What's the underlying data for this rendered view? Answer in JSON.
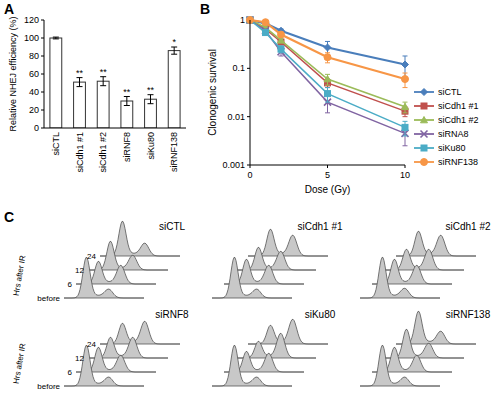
{
  "chart_data": [
    {
      "type": "bar",
      "panel_label": "A",
      "ylabel": "Relative NHEJ efficiency (%)",
      "categories": [
        "siCTL",
        "siCdh1 #1",
        "siCdh1 #2",
        "siRNF8",
        "siKu80",
        "siRNF138"
      ],
      "values": [
        100,
        51,
        52,
        30,
        32,
        86
      ],
      "errors": [
        1,
        5,
        5,
        5,
        5,
        4
      ],
      "significance": [
        null,
        "**",
        "**",
        "**",
        "**",
        "*"
      ],
      "color": "#ffffff",
      "ylim": [
        0,
        120
      ],
      "yticks": [
        0,
        20,
        40,
        60,
        80,
        100,
        120
      ],
      "grid": false
    },
    {
      "type": "line",
      "panel_label": "B",
      "xlabel": "Dose (Gy)",
      "ylabel": "Clonogenic survival",
      "x": [
        0,
        1,
        2,
        5,
        10
      ],
      "xlim": [
        0,
        10
      ],
      "xticks": [
        0,
        5,
        10
      ],
      "ylim": [
        0.001,
        1
      ],
      "yticks": [
        0.001,
        0.01,
        0.1,
        1
      ],
      "log": "y",
      "grid": false,
      "legend": "right",
      "series": [
        {
          "name": "siCTL",
          "color": "#4a7ebb",
          "marker": "diamond",
          "values": [
            1,
            0.85,
            0.6,
            0.27,
            0.12
          ],
          "errors": [
            0,
            0.02,
            0.05,
            0.09,
            0.06
          ]
        },
        {
          "name": "siCdh1 #1",
          "color": "#c0504d",
          "marker": "square",
          "values": [
            1,
            0.65,
            0.35,
            0.05,
            0.013
          ],
          "errors": [
            0,
            0.05,
            0.04,
            0.01,
            0.003
          ]
        },
        {
          "name": "siCdh1 #2",
          "color": "#9bbb59",
          "marker": "triangle",
          "values": [
            1,
            0.7,
            0.38,
            0.06,
            0.016
          ],
          "errors": [
            0,
            0.05,
            0.04,
            0.015,
            0.004
          ]
        },
        {
          "name": "siRNA8",
          "color": "#8064a2",
          "marker": "x",
          "values": [
            1,
            0.6,
            0.22,
            0.02,
            0.0045
          ],
          "errors": [
            0,
            0.05,
            0.04,
            0.008,
            0.002
          ]
        },
        {
          "name": "siKu80",
          "color": "#4bacc6",
          "marker": "square",
          "values": [
            1,
            0.55,
            0.25,
            0.03,
            0.006
          ],
          "errors": [
            0,
            0.05,
            0.04,
            0.01,
            0.002
          ]
        },
        {
          "name": "siRNF138",
          "color": "#f79646",
          "marker": "circle",
          "values": [
            1,
            0.9,
            0.5,
            0.17,
            0.06
          ],
          "errors": [
            0,
            0.05,
            0.05,
            0.04,
            0.02
          ]
        }
      ]
    },
    {
      "type": "ridgeline",
      "panel_label": "C",
      "ylabel": "Hrs after IR",
      "time_labels": [
        "before",
        "6",
        "12",
        "24"
      ],
      "tick_labels": false,
      "color": "#c8c8c8",
      "panels": [
        {
          "name": "siCTL",
          "g1": [
            1.0,
            0.55,
            0.7,
            0.85
          ],
          "g2": [
            0.2,
            0.45,
            0.35,
            0.3
          ]
        },
        {
          "name": "siCdh1 #1",
          "g1": [
            1.0,
            0.6,
            0.55,
            0.65
          ],
          "g2": [
            0.2,
            0.45,
            0.45,
            0.5
          ]
        },
        {
          "name": "siCdh1 #2",
          "g1": [
            1.0,
            0.6,
            0.5,
            0.6
          ],
          "g2": [
            0.22,
            0.45,
            0.5,
            0.5
          ]
        },
        {
          "name": "siRNF8",
          "g1": [
            1.0,
            0.6,
            0.5,
            0.5
          ],
          "g2": [
            0.2,
            0.4,
            0.5,
            0.55
          ]
        },
        {
          "name": "siKu80",
          "g1": [
            1.0,
            0.5,
            0.4,
            0.45
          ],
          "g2": [
            0.2,
            0.45,
            0.6,
            0.6
          ]
        },
        {
          "name": "siRNF138",
          "g1": [
            1.0,
            0.6,
            0.7,
            0.8
          ],
          "g2": [
            0.2,
            0.4,
            0.35,
            0.3
          ]
        }
      ]
    }
  ]
}
